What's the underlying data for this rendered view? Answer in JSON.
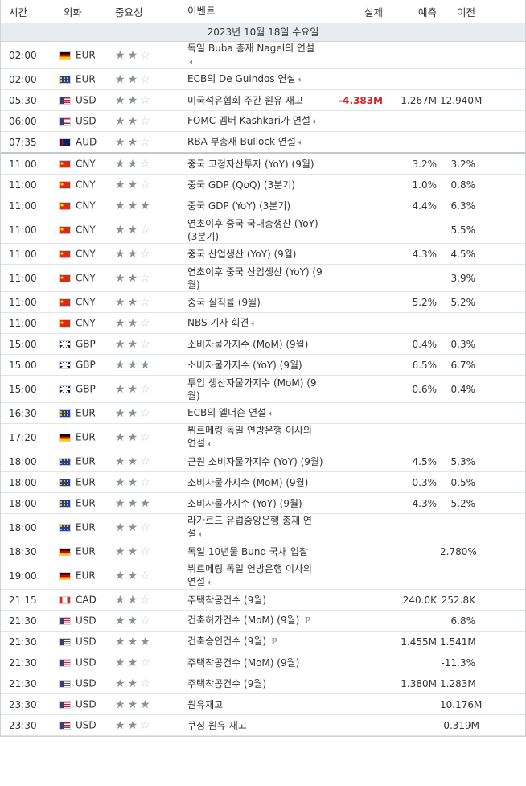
{
  "header": {
    "time": "시간",
    "currency": "외화",
    "importance": "중요성",
    "event": "이벤트",
    "actual": "실제",
    "forecast": "예측",
    "previous": "이전"
  },
  "date_label": "2023년 10월 18일 수요일",
  "events": [
    {
      "time": "02:00",
      "flag": "de",
      "cur": "EUR",
      "imp": 2,
      "lines": [
        "독일 Buba 총재 Nagel의 연설",
        ""
      ],
      "speech": true,
      "actual": "",
      "forecast": "",
      "previous": ""
    },
    {
      "time": "02:00",
      "flag": "eu",
      "cur": "EUR",
      "imp": 2,
      "lines": [
        "ECB의 De Guindos 연설"
      ],
      "speech": true,
      "actual": "",
      "forecast": "",
      "previous": ""
    },
    {
      "time": "05:30",
      "flag": "us",
      "cur": "USD",
      "imp": 2,
      "lines": [
        "미국석유협회 주간 원유 재고"
      ],
      "speech": false,
      "actual": "-4.383M",
      "actual_neg": true,
      "forecast": "-1.267M",
      "previous": "12.940M"
    },
    {
      "time": "06:00",
      "flag": "us",
      "cur": "USD",
      "imp": 2,
      "lines": [
        "FOMC 멤버 Kashkari가 연설"
      ],
      "speech": true,
      "actual": "",
      "forecast": "",
      "previous": ""
    },
    {
      "time": "07:35",
      "flag": "au",
      "cur": "AUD",
      "imp": 2,
      "lines": [
        "RBA 부총재 Bullock 연설"
      ],
      "speech": true,
      "actual": "",
      "forecast": "",
      "previous": "",
      "sep": true
    },
    {
      "time": "11:00",
      "flag": "cn",
      "cur": "CNY",
      "imp": 2,
      "lines": [
        "중국 고정자산투자 (YoY) (9월)"
      ],
      "speech": false,
      "actual": "",
      "forecast": "3.2%",
      "previous": "3.2%"
    },
    {
      "time": "11:00",
      "flag": "cn",
      "cur": "CNY",
      "imp": 2,
      "lines": [
        "중국 GDP (QoQ) (3분기)"
      ],
      "speech": false,
      "actual": "",
      "forecast": "1.0%",
      "previous": "0.8%"
    },
    {
      "time": "11:00",
      "flag": "cn",
      "cur": "CNY",
      "imp": 3,
      "lines": [
        "중국 GDP (YoY) (3분기)"
      ],
      "speech": false,
      "actual": "",
      "forecast": "4.4%",
      "previous": "6.3%"
    },
    {
      "time": "11:00",
      "flag": "cn",
      "cur": "CNY",
      "imp": 2,
      "lines": [
        "연초이후 중국 국내총생산 (YoY)",
        "(3분기)"
      ],
      "speech": false,
      "actual": "",
      "forecast": "",
      "previous": "5.5%"
    },
    {
      "time": "11:00",
      "flag": "cn",
      "cur": "CNY",
      "imp": 2,
      "lines": [
        "중국 산업생산 (YoY) (9월)"
      ],
      "speech": false,
      "actual": "",
      "forecast": "4.3%",
      "previous": "4.5%"
    },
    {
      "time": "11:00",
      "flag": "cn",
      "cur": "CNY",
      "imp": 2,
      "lines": [
        "연초이후 중국 산업생산 (YoY) (9",
        "월)"
      ],
      "speech": false,
      "actual": "",
      "forecast": "",
      "previous": "3.9%"
    },
    {
      "time": "11:00",
      "flag": "cn",
      "cur": "CNY",
      "imp": 2,
      "lines": [
        "중국 실직률 (9월)"
      ],
      "speech": false,
      "actual": "",
      "forecast": "5.2%",
      "previous": "5.2%"
    },
    {
      "time": "11:00",
      "flag": "cn",
      "cur": "CNY",
      "imp": 2,
      "lines": [
        "NBS 기자 회견"
      ],
      "speech": true,
      "actual": "",
      "forecast": "",
      "previous": ""
    },
    {
      "time": "15:00",
      "flag": "gb",
      "cur": "GBP",
      "imp": 2,
      "lines": [
        "소비자물가지수 (MoM) (9월)"
      ],
      "speech": false,
      "actual": "",
      "forecast": "0.4%",
      "previous": "0.3%"
    },
    {
      "time": "15:00",
      "flag": "gb",
      "cur": "GBP",
      "imp": 3,
      "lines": [
        "소비자물가지수 (YoY) (9월)"
      ],
      "speech": false,
      "actual": "",
      "forecast": "6.5%",
      "previous": "6.7%"
    },
    {
      "time": "15:00",
      "flag": "gb",
      "cur": "GBP",
      "imp": 2,
      "lines": [
        "투입 생산자물가지수 (MoM) (9",
        "월)"
      ],
      "speech": false,
      "actual": "",
      "forecast": "0.6%",
      "previous": "0.4%"
    },
    {
      "time": "16:30",
      "flag": "eu",
      "cur": "EUR",
      "imp": 2,
      "lines": [
        "ECB의 엘더슨 연설"
      ],
      "speech": true,
      "actual": "",
      "forecast": "",
      "previous": ""
    },
    {
      "time": "17:20",
      "flag": "de",
      "cur": "EUR",
      "imp": 2,
      "lines": [
        "뷔르메링 독일 연방은행 이사의",
        "연설"
      ],
      "speech": true,
      "actual": "",
      "forecast": "",
      "previous": ""
    },
    {
      "time": "18:00",
      "flag": "eu",
      "cur": "EUR",
      "imp": 2,
      "lines": [
        "근원 소비자물가지수 (YoY) (9월)"
      ],
      "speech": false,
      "actual": "",
      "forecast": "4.5%",
      "previous": "5.3%"
    },
    {
      "time": "18:00",
      "flag": "eu",
      "cur": "EUR",
      "imp": 2,
      "lines": [
        "소비자물가지수 (MoM) (9월)"
      ],
      "speech": false,
      "actual": "",
      "forecast": "0.3%",
      "previous": "0.5%"
    },
    {
      "time": "18:00",
      "flag": "eu",
      "cur": "EUR",
      "imp": 3,
      "lines": [
        "소비자물가지수 (YoY) (9월)"
      ],
      "speech": false,
      "actual": "",
      "forecast": "4.3%",
      "previous": "5.2%"
    },
    {
      "time": "18:00",
      "flag": "eu",
      "cur": "EUR",
      "imp": 2,
      "lines": [
        "라가르드 유럽중앙은행 총재 연",
        "설"
      ],
      "speech": true,
      "actual": "",
      "forecast": "",
      "previous": ""
    },
    {
      "time": "18:30",
      "flag": "de",
      "cur": "EUR",
      "imp": 2,
      "lines": [
        "독일 10년물 Bund 국채 입찰"
      ],
      "speech": false,
      "actual": "",
      "forecast": "",
      "previous": "2.780%"
    },
    {
      "time": "19:00",
      "flag": "de",
      "cur": "EUR",
      "imp": 2,
      "lines": [
        "뷔르메링 독일 연방은행 이사의",
        "연설"
      ],
      "speech": true,
      "actual": "",
      "forecast": "",
      "previous": ""
    },
    {
      "time": "21:15",
      "flag": "ca",
      "cur": "CAD",
      "imp": 2,
      "lines": [
        "주택착공건수 (9월)"
      ],
      "speech": false,
      "actual": "",
      "forecast": "240.0K",
      "previous": "252.8K"
    },
    {
      "time": "21:30",
      "flag": "us",
      "cur": "USD",
      "imp": 2,
      "lines": [
        "건축허가건수 (MoM) (9월)"
      ],
      "speech": false,
      "prelim": true,
      "actual": "",
      "forecast": "",
      "previous": "6.8%"
    },
    {
      "time": "21:30",
      "flag": "us",
      "cur": "USD",
      "imp": 3,
      "lines": [
        "건축승인건수 (9월)"
      ],
      "speech": false,
      "prelim": true,
      "actual": "",
      "forecast": "1.455M",
      "previous": "1.541M"
    },
    {
      "time": "21:30",
      "flag": "us",
      "cur": "USD",
      "imp": 2,
      "lines": [
        "주택착공건수 (MoM) (9월)"
      ],
      "speech": false,
      "actual": "",
      "forecast": "",
      "previous": "-11.3%"
    },
    {
      "time": "21:30",
      "flag": "us",
      "cur": "USD",
      "imp": 2,
      "lines": [
        "주택착공건수 (9월)"
      ],
      "speech": false,
      "actual": "",
      "forecast": "1.380M",
      "previous": "1.283M"
    },
    {
      "time": "23:30",
      "flag": "us",
      "cur": "USD",
      "imp": 3,
      "lines": [
        "원유재고"
      ],
      "speech": false,
      "actual": "",
      "forecast": "",
      "previous": "10.176M"
    },
    {
      "time": "23:30",
      "flag": "us",
      "cur": "USD",
      "imp": 2,
      "lines": [
        "쿠싱 원유 재고"
      ],
      "speech": false,
      "actual": "",
      "forecast": "",
      "previous": "-0.319M"
    }
  ],
  "speech_icon": "speaker-icon",
  "prelim_glyph": "P",
  "colors": {
    "negative": "#e02020",
    "star_on": "#8a8f96",
    "star_off": "#c8cbcf",
    "date_bg": "#e8ecf1"
  }
}
